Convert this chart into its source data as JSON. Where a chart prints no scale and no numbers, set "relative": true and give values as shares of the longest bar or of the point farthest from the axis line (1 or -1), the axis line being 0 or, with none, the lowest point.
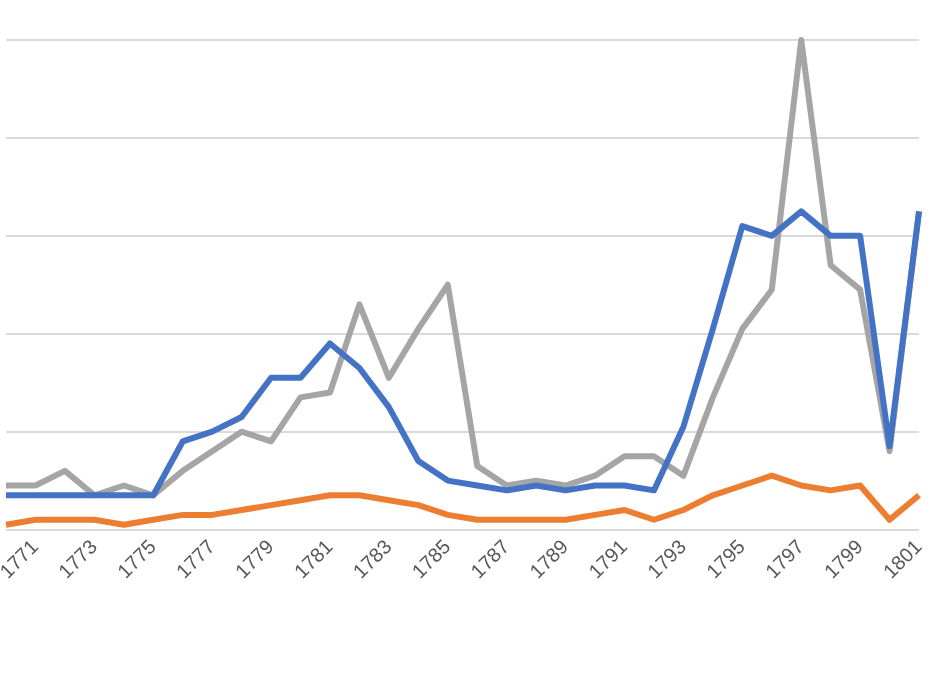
{
  "chart_data": {
    "type": "line",
    "relative": true,
    "grid": "y",
    "legend": false,
    "marker": "none",
    "line_style": "solid",
    "categories": [
      null,
      "1771",
      null,
      "1773",
      null,
      "1775",
      null,
      "1777",
      null,
      "1779",
      null,
      "1781",
      null,
      "1783",
      null,
      "1785",
      null,
      "1787",
      null,
      "1789",
      null,
      "1791",
      null,
      "1793",
      null,
      "1795",
      null,
      "1797",
      null,
      "1799",
      null,
      "1801"
    ],
    "series": [
      {
        "color": "#4472c4",
        "values": [
          0.07,
          0.07,
          0.07,
          0.07,
          0.07,
          0.07,
          0.18,
          0.2,
          0.23,
          0.31,
          0.31,
          0.38,
          0.33,
          0.25,
          0.14,
          0.1,
          0.09,
          0.08,
          0.09,
          0.08,
          0.09,
          0.09,
          0.08,
          0.21,
          0.41,
          0.62,
          0.6,
          0.65,
          0.6,
          0.6,
          0.17,
          0.65
        ]
      },
      {
        "color": "#ed7d31",
        "values": [
          0.01,
          0.02,
          0.02,
          0.02,
          0.01,
          0.02,
          0.03,
          0.03,
          0.04,
          0.05,
          0.06,
          0.07,
          0.07,
          0.06,
          0.05,
          0.03,
          0.02,
          0.02,
          0.02,
          0.02,
          0.03,
          0.04,
          0.02,
          0.04,
          0.07,
          0.09,
          0.11,
          0.09,
          0.08,
          0.09,
          0.02,
          0.07
        ]
      },
      {
        "color": "#a5a5a5",
        "values": [
          0.09,
          0.09,
          0.12,
          0.07,
          0.09,
          0.07,
          0.12,
          0.16,
          0.2,
          0.18,
          0.27,
          0.28,
          0.46,
          0.31,
          0.41,
          0.5,
          0.13,
          0.09,
          0.1,
          0.09,
          0.11,
          0.15,
          0.15,
          0.11,
          0.27,
          0.41,
          0.49,
          1,
          0.54,
          0.49,
          0.16,
          0.65
        ]
      }
    ]
  }
}
